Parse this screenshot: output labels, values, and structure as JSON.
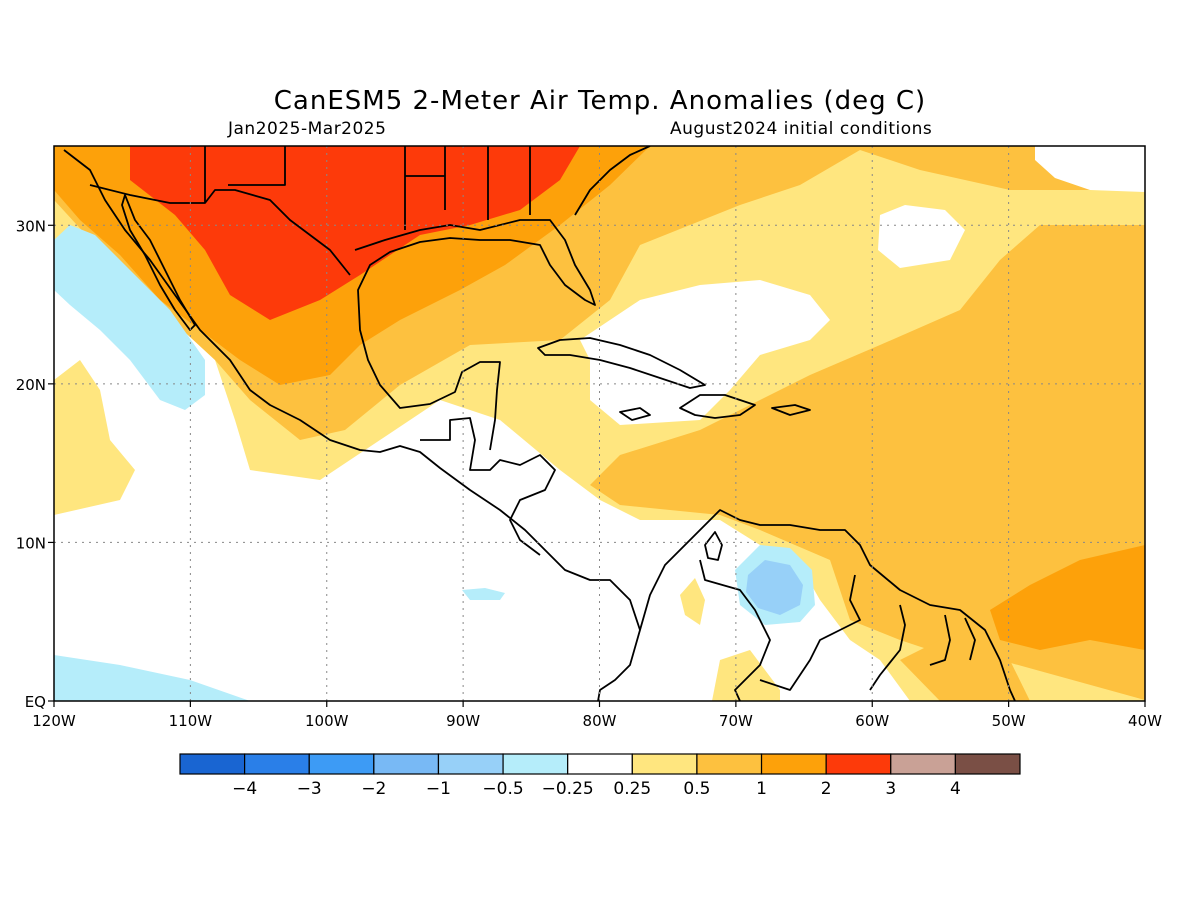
{
  "title": "CanESM5 2-Meter Air Temp. Anomalies (deg C)",
  "period": "Jan2025-Mar2025",
  "init": "August2024 initial conditions",
  "map": {
    "lon_range": [
      -120,
      -40
    ],
    "lat_range": [
      0,
      35
    ],
    "lat_ticks": [
      {
        "value": 30,
        "label": "30N"
      },
      {
        "value": 20,
        "label": "20N"
      },
      {
        "value": 10,
        "label": "10N"
      },
      {
        "value": 0,
        "label": "EQ"
      }
    ],
    "lon_ticks": [
      {
        "value": -120,
        "label": "120W"
      },
      {
        "value": -110,
        "label": "110W"
      },
      {
        "value": -100,
        "label": "100W"
      },
      {
        "value": -90,
        "label": "90W"
      },
      {
        "value": -80,
        "label": "80W"
      },
      {
        "value": -70,
        "label": "70W"
      },
      {
        "value": -60,
        "label": "60W"
      },
      {
        "value": -50,
        "label": "50W"
      },
      {
        "value": -40,
        "label": "40W"
      }
    ]
  },
  "colorbar": {
    "colors": [
      "#1965d2",
      "#2a7fe8",
      "#3d9bf5",
      "#78b9f5",
      "#97d0f8",
      "#b5edfa",
      "#ffffff",
      "#ffe67f",
      "#fdc13f",
      "#fda10a",
      "#fd3a0a",
      "#c9a196",
      "#7a4f45"
    ],
    "labels": [
      "-4",
      "-3",
      "-2",
      "-1",
      "-0.5",
      "-0.25",
      "0.25",
      "0.5",
      "1",
      "2",
      "3",
      "4"
    ]
  }
}
